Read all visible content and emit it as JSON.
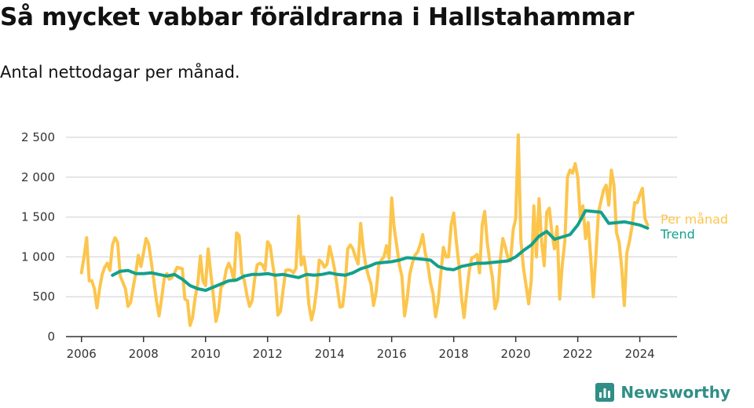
{
  "header": {
    "title": "Så mycket vabbar föräldrarna i Hallstahammar",
    "subtitle": "Antal nettodagar per månad."
  },
  "brand": {
    "name": "Newsworthy",
    "icon": "newsworthy-logo-icon",
    "color": "#2f8f86"
  },
  "chart_data": {
    "type": "line",
    "title": "Så mycket vabbar föräldrarna i Hallstahammar",
    "subtitle": "Antal nettodagar per månad.",
    "xlabel": "",
    "ylabel": "",
    "ylim": [
      0,
      2500
    ],
    "yticks": [
      0,
      500,
      1000,
      1500,
      2000,
      2500
    ],
    "ytick_labels": [
      "0",
      "500",
      "1 000",
      "1 500",
      "2 000",
      "2 500"
    ],
    "xlim": [
      2005.5,
      2025.2
    ],
    "xticks": [
      2006,
      2008,
      2010,
      2012,
      2014,
      2016,
      2018,
      2020,
      2022,
      2024
    ],
    "grid": "horizontal",
    "legend": "inline-right",
    "series": [
      {
        "name": "Per månad",
        "color": "#fcc54c",
        "x": [
          2006.0,
          2006.083,
          2006.167,
          2006.25,
          2006.333,
          2006.417,
          2006.5,
          2006.583,
          2006.667,
          2006.75,
          2006.833,
          2006.917,
          2007.0,
          2007.083,
          2007.167,
          2007.25,
          2007.333,
          2007.417,
          2007.5,
          2007.583,
          2007.667,
          2007.75,
          2007.833,
          2007.917,
          2008.0,
          2008.083,
          2008.167,
          2008.25,
          2008.333,
          2008.417,
          2008.5,
          2008.583,
          2008.667,
          2008.75,
          2008.833,
          2008.917,
          2009.0,
          2009.083,
          2009.167,
          2009.25,
          2009.333,
          2009.417,
          2009.5,
          2009.583,
          2009.667,
          2009.75,
          2009.833,
          2009.917,
          2010.0,
          2010.083,
          2010.167,
          2010.25,
          2010.333,
          2010.417,
          2010.5,
          2010.583,
          2010.667,
          2010.75,
          2010.833,
          2010.917,
          2011.0,
          2011.083,
          2011.167,
          2011.25,
          2011.333,
          2011.417,
          2011.5,
          2011.583,
          2011.667,
          2011.75,
          2011.833,
          2011.917,
          2012.0,
          2012.083,
          2012.167,
          2012.25,
          2012.333,
          2012.417,
          2012.5,
          2012.583,
          2012.667,
          2012.75,
          2012.833,
          2012.917,
          2013.0,
          2013.083,
          2013.167,
          2013.25,
          2013.333,
          2013.417,
          2013.5,
          2013.583,
          2013.667,
          2013.75,
          2013.833,
          2013.917,
          2014.0,
          2014.083,
          2014.167,
          2014.25,
          2014.333,
          2014.417,
          2014.5,
          2014.583,
          2014.667,
          2014.75,
          2014.833,
          2014.917,
          2015.0,
          2015.083,
          2015.167,
          2015.25,
          2015.333,
          2015.417,
          2015.5,
          2015.583,
          2015.667,
          2015.75,
          2015.833,
          2015.917,
          2016.0,
          2016.083,
          2016.167,
          2016.25,
          2016.333,
          2016.417,
          2016.5,
          2016.583,
          2016.667,
          2016.75,
          2016.833,
          2016.917,
          2017.0,
          2017.083,
          2017.167,
          2017.25,
          2017.333,
          2017.417,
          2017.5,
          2017.583,
          2017.667,
          2017.75,
          2017.833,
          2017.917,
          2018.0,
          2018.083,
          2018.167,
          2018.25,
          2018.333,
          2018.417,
          2018.5,
          2018.583,
          2018.667,
          2018.75,
          2018.833,
          2018.917,
          2019.0,
          2019.083,
          2019.167,
          2019.25,
          2019.333,
          2019.417,
          2019.5,
          2019.583,
          2019.667,
          2019.75,
          2019.833,
          2019.917,
          2020.0,
          2020.083,
          2020.167,
          2020.25,
          2020.333,
          2020.417,
          2020.5,
          2020.583,
          2020.667,
          2020.75,
          2020.833,
          2020.917,
          2021.0,
          2021.083,
          2021.167,
          2021.25,
          2021.333,
          2021.417,
          2021.5,
          2021.583,
          2021.667,
          2021.75,
          2021.833,
          2021.917,
          2022.0,
          2022.083,
          2022.167,
          2022.25,
          2022.333,
          2022.417,
          2022.5,
          2022.583,
          2022.667,
          2022.75,
          2022.833,
          2022.917,
          2023.0,
          2023.083,
          2023.167,
          2023.25,
          2023.333,
          2023.417,
          2023.5,
          2023.583,
          2023.667,
          2023.75,
          2023.833,
          2023.917,
          2024.0,
          2024.083,
          2024.167,
          2024.25
        ],
        "values": [
          800,
          1000,
          1240,
          700,
          700,
          600,
          360,
          600,
          780,
          870,
          920,
          830,
          1150,
          1240,
          1180,
          760,
          680,
          600,
          380,
          430,
          620,
          800,
          1020,
          880,
          1050,
          1230,
          1160,
          940,
          700,
          450,
          260,
          480,
          730,
          790,
          720,
          740,
          800,
          870,
          860,
          850,
          470,
          450,
          140,
          240,
          500,
          660,
          1010,
          700,
          640,
          1100,
          800,
          520,
          190,
          320,
          620,
          660,
          840,
          920,
          840,
          700,
          1300,
          1270,
          800,
          700,
          520,
          380,
          450,
          720,
          900,
          920,
          900,
          830,
          1190,
          1140,
          900,
          700,
          270,
          320,
          580,
          830,
          840,
          830,
          800,
          860,
          1510,
          900,
          1000,
          780,
          400,
          210,
          350,
          600,
          960,
          930,
          870,
          910,
          1130,
          990,
          830,
          600,
          370,
          380,
          650,
          1100,
          1150,
          1100,
          1000,
          910,
          1420,
          1100,
          890,
          760,
          660,
          390,
          560,
          900,
          960,
          1000,
          1140,
          980,
          1740,
          1360,
          1130,
          900,
          750,
          260,
          470,
          780,
          920,
          1020,
          1060,
          1150,
          1280,
          1050,
          900,
          680,
          540,
          250,
          430,
          780,
          1120,
          1000,
          1000,
          1400,
          1550,
          1200,
          900,
          500,
          240,
          540,
          820,
          990,
          1000,
          1030,
          800,
          1400,
          1570,
          1180,
          930,
          740,
          350,
          460,
          960,
          1230,
          1120,
          980,
          950,
          1340,
          1480,
          2530,
          1200,
          860,
          640,
          410,
          700,
          1640,
          1000,
          1730,
          1200,
          890,
          1560,
          1610,
          1300,
          1100,
          1380,
          470,
          900,
          1200,
          2000,
          2090,
          2050,
          2170,
          2000,
          1470,
          1640,
          1230,
          1430,
          1000,
          500,
          1000,
          1560,
          1700,
          1840,
          1900,
          1650,
          2090,
          1900,
          1300,
          1180,
          860,
          390,
          1050,
          1200,
          1380,
          1680,
          1680,
          1780,
          1860,
          1480,
          1400
        ]
      },
      {
        "name": "Trend",
        "color": "#13a08c",
        "x": [
          2007.0,
          2007.25,
          2007.5,
          2007.75,
          2008.0,
          2008.25,
          2008.5,
          2008.75,
          2009.0,
          2009.25,
          2009.5,
          2009.75,
          2010.0,
          2010.25,
          2010.5,
          2010.75,
          2011.0,
          2011.25,
          2011.5,
          2011.75,
          2012.0,
          2012.25,
          2012.5,
          2012.75,
          2013.0,
          2013.25,
          2013.5,
          2013.75,
          2014.0,
          2014.25,
          2014.5,
          2014.75,
          2015.0,
          2015.25,
          2015.5,
          2015.75,
          2016.0,
          2016.25,
          2016.5,
          2016.75,
          2017.0,
          2017.25,
          2017.5,
          2017.75,
          2018.0,
          2018.25,
          2018.5,
          2018.75,
          2019.0,
          2019.25,
          2019.5,
          2019.75,
          2020.0,
          2020.25,
          2020.5,
          2020.75,
          2021.0,
          2021.25,
          2021.5,
          2021.75,
          2022.0,
          2022.25,
          2022.5,
          2022.75,
          2023.0,
          2023.25,
          2023.5,
          2023.75,
          2024.0,
          2024.25
        ],
        "values": [
          770,
          820,
          830,
          790,
          790,
          800,
          780,
          760,
          780,
          720,
          640,
          600,
          580,
          620,
          660,
          700,
          710,
          760,
          780,
          780,
          790,
          770,
          780,
          760,
          740,
          780,
          770,
          780,
          800,
          780,
          770,
          800,
          850,
          880,
          920,
          930,
          940,
          960,
          990,
          980,
          970,
          960,
          880,
          850,
          840,
          880,
          900,
          920,
          920,
          930,
          940,
          950,
          1000,
          1080,
          1150,
          1260,
          1320,
          1220,
          1250,
          1280,
          1400,
          1580,
          1570,
          1560,
          1420,
          1430,
          1440,
          1420,
          1400,
          1360
        ]
      }
    ]
  }
}
